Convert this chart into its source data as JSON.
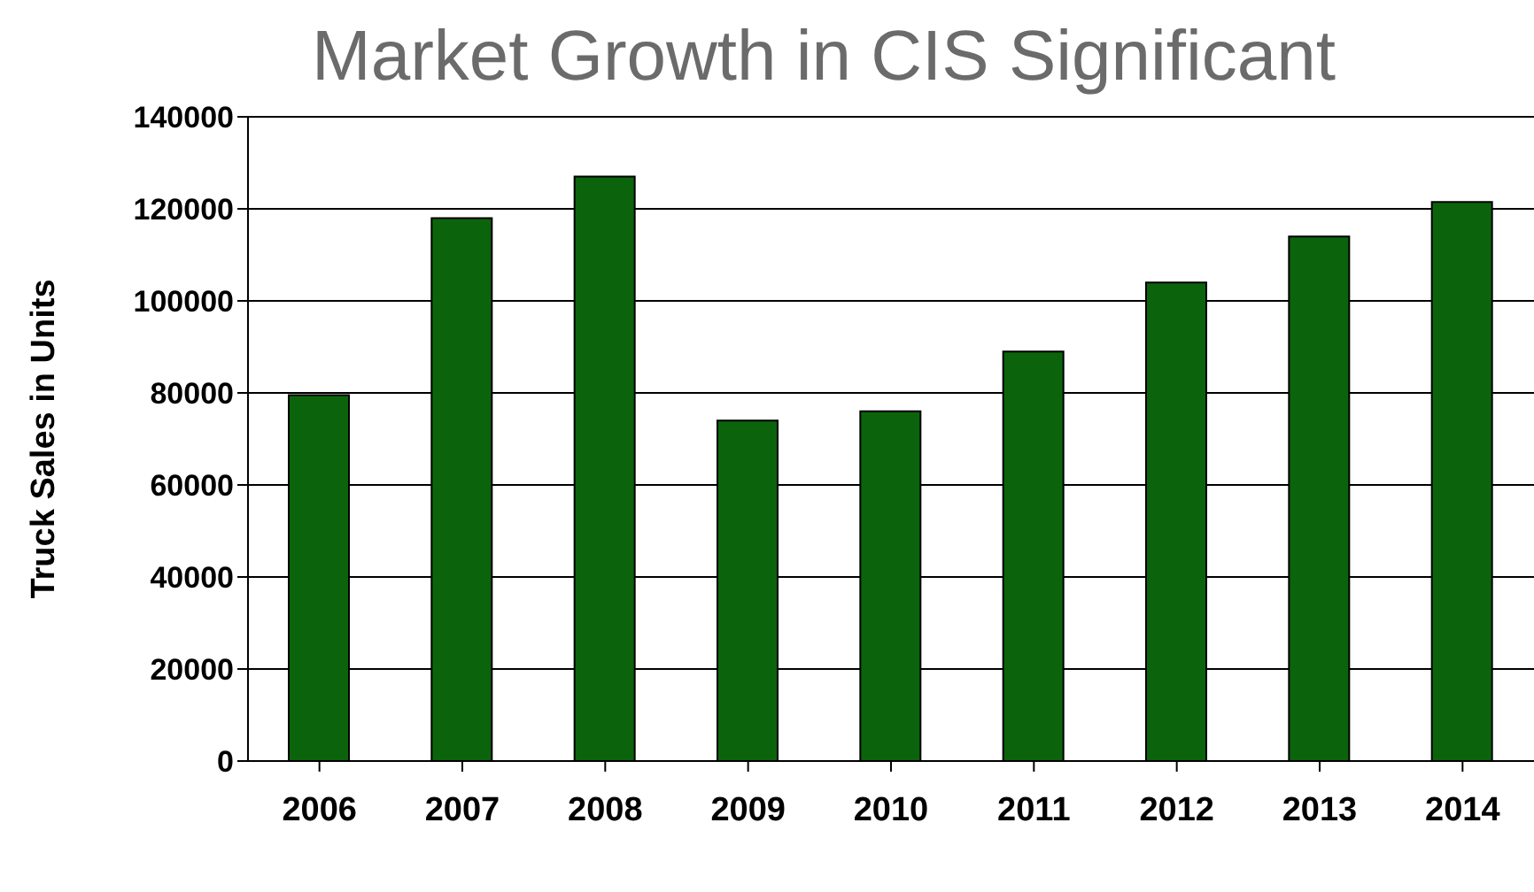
{
  "chart_data": {
    "type": "bar",
    "title": "Market Growth in CIS Significant",
    "ylabel": "Truck Sales in Units",
    "categories": [
      "2006",
      "2007",
      "2008",
      "2009",
      "2010",
      "2011",
      "2012",
      "2013",
      "2014"
    ],
    "values": [
      79500,
      118000,
      127000,
      74000,
      76000,
      89000,
      104000,
      114000,
      121500
    ],
    "color": "#0b640b",
    "ylim": [
      0,
      140000
    ],
    "yticks": [
      0,
      20000,
      40000,
      60000,
      80000,
      100000,
      120000,
      140000
    ],
    "grid": "y",
    "legend": false
  }
}
